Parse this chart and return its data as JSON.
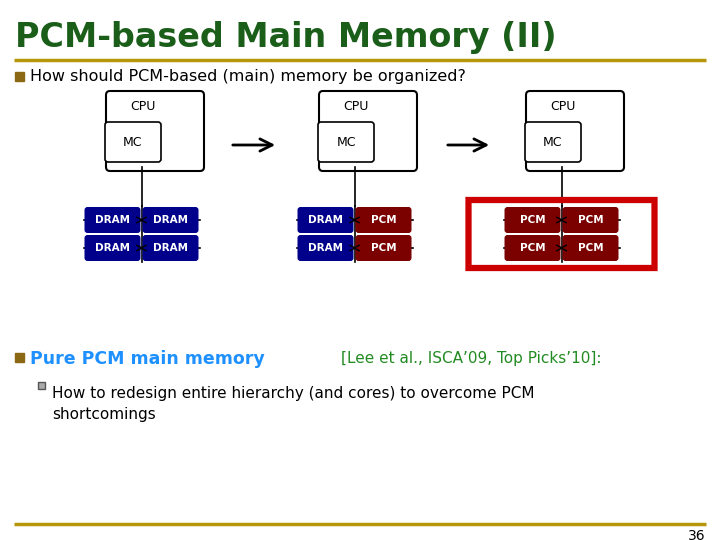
{
  "title": "PCM-based Main Memory (II)",
  "title_color": "#1a5e1a",
  "background_color": "#ffffff",
  "gold_line_color": "#b8960c",
  "bullet1_text": "How should PCM-based (main) memory be organized?",
  "bullet1_color": "#000000",
  "bullet_square_color": "#8b6914",
  "bullet2_main": "Pure PCM main memory ",
  "bullet2_ref": "[Lee et al., ISCA’09, Top Picks’10]:",
  "bullet2_main_color": "#1e90ff",
  "bullet2_ref_color": "#228b22",
  "sub_bullet_color": "#000000",
  "sub_bullet_text": "How to redesign entire hierarchy (and cores) to overcome PCM\nshortcomings",
  "page_number": "36",
  "dram_color": "#00008b",
  "dram_text_color": "#ffffff",
  "pcm_color": "#7b0000",
  "pcm_text_color": "#ffffff",
  "red_border_color": "#cc0000",
  "arrow_color": "#000000"
}
